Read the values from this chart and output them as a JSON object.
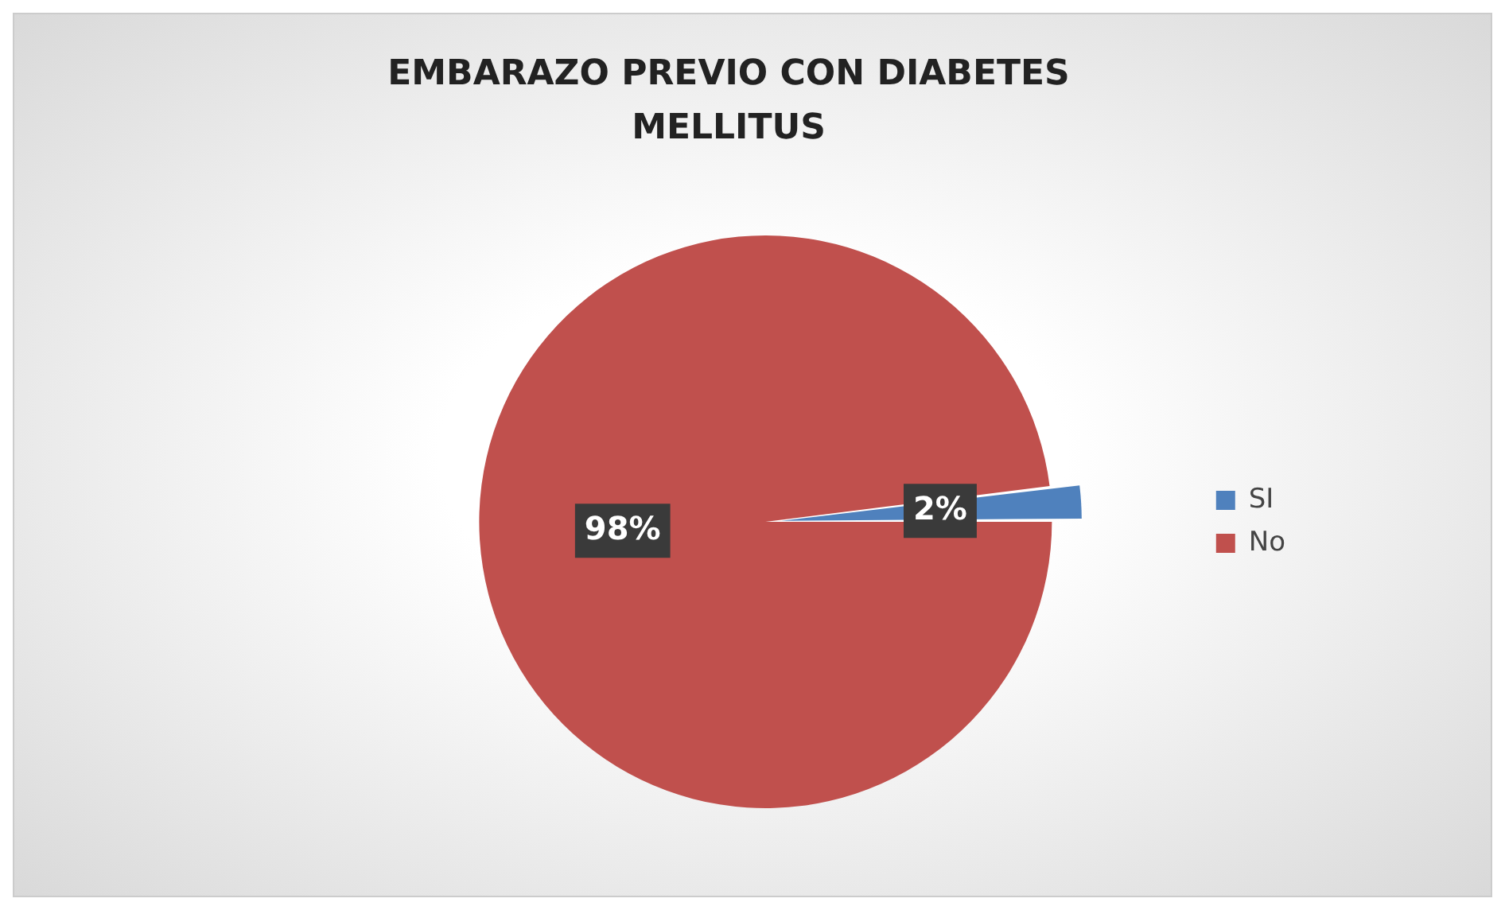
{
  "chart_data": {
    "type": "pie",
    "title": "EMBARAZO PREVIO CON DIABETES MELLITUS",
    "categories": [
      "SI",
      "No"
    ],
    "values": [
      2,
      98
    ],
    "colors": [
      "#4f81bd",
      "#c0504d"
    ],
    "legend": "right",
    "value_labels": [
      "2%",
      "98%"
    ]
  }
}
